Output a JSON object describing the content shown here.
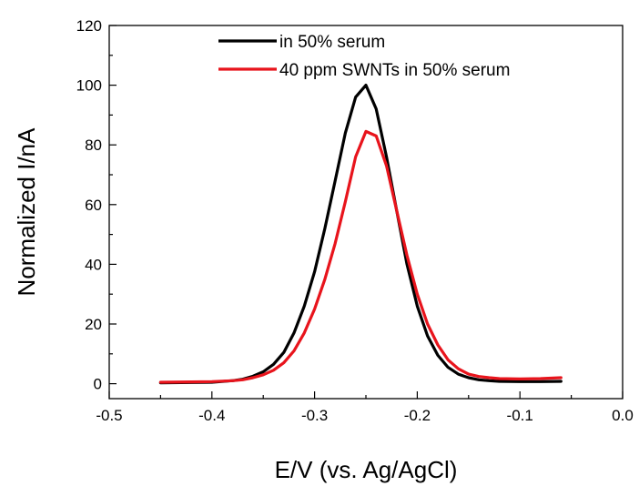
{
  "chart_data": {
    "type": "line",
    "title": "",
    "xlabel": "E/V (vs. Ag/AgCl)",
    "ylabel": "Normalized I/nA",
    "xlim": [
      -0.5,
      0.0
    ],
    "ylim": [
      -5,
      120
    ],
    "xticks": [
      -0.5,
      -0.4,
      -0.3,
      -0.2,
      -0.1,
      0.0
    ],
    "xtick_labels": [
      "-0.5",
      "-0.4",
      "-0.3",
      "-0.2",
      "-0.1",
      "0.0"
    ],
    "yticks": [
      0,
      20,
      40,
      60,
      80,
      100,
      120
    ],
    "ytick_labels": [
      "0",
      "20",
      "40",
      "60",
      "80",
      "100",
      "120"
    ],
    "grid": false,
    "legend_position": "top-right",
    "series": [
      {
        "name": "in 50% serum",
        "color": "#000000",
        "x": [
          -0.45,
          -0.42,
          -0.4,
          -0.38,
          -0.37,
          -0.36,
          -0.35,
          -0.34,
          -0.33,
          -0.32,
          -0.31,
          -0.3,
          -0.29,
          -0.28,
          -0.27,
          -0.26,
          -0.25,
          -0.24,
          -0.23,
          -0.22,
          -0.21,
          -0.2,
          -0.19,
          -0.18,
          -0.17,
          -0.16,
          -0.15,
          -0.14,
          -0.13,
          -0.12,
          -0.1,
          -0.08,
          -0.06
        ],
        "y": [
          0.3,
          0.4,
          0.5,
          1.0,
          1.5,
          2.5,
          4,
          6.5,
          10.5,
          17,
          26,
          37.5,
          52,
          68,
          84,
          96,
          100,
          92,
          76,
          58,
          40,
          26,
          16,
          9.5,
          5.5,
          3.2,
          2.0,
          1.3,
          1.0,
          0.8,
          0.7,
          0.7,
          0.8
        ]
      },
      {
        "name": "40 ppm SWNTs in 50% serum",
        "color": "#e8141c",
        "x": [
          -0.45,
          -0.42,
          -0.4,
          -0.38,
          -0.37,
          -0.36,
          -0.35,
          -0.34,
          -0.33,
          -0.32,
          -0.31,
          -0.3,
          -0.29,
          -0.28,
          -0.27,
          -0.26,
          -0.25,
          -0.24,
          -0.23,
          -0.22,
          -0.21,
          -0.2,
          -0.19,
          -0.18,
          -0.17,
          -0.16,
          -0.15,
          -0.14,
          -0.13,
          -0.12,
          -0.1,
          -0.08,
          -0.06
        ],
        "y": [
          0.5,
          0.6,
          0.7,
          1.0,
          1.3,
          2.0,
          3.0,
          4.5,
          7.0,
          11,
          17,
          25,
          35,
          47,
          61,
          76,
          84.5,
          83,
          73,
          58,
          43,
          30,
          20,
          13,
          8,
          5,
          3.2,
          2.4,
          2.0,
          1.7,
          1.6,
          1.7,
          2.0
        ]
      }
    ]
  }
}
